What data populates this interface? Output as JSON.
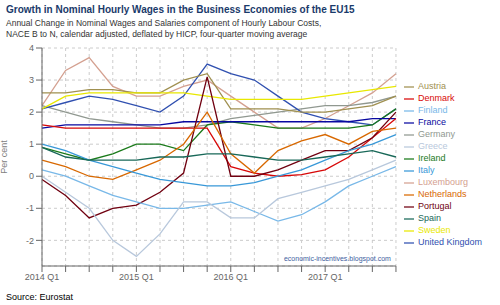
{
  "chart_data": {
    "type": "line",
    "title": "Growth in Nominal Hourly Wages in the Business Economies of the EU15",
    "subtitle": "Annual Change in Nominal Wages and Salaries component of Hourly Labour Costs,\nNACE B to N, calendar adjusted, deflated by HICP, four-quarter moving average",
    "ylabel": "Per cent",
    "annotations": [
      "economic-incentives.blogspot.com",
      "Source: Eurostat"
    ],
    "categories": [
      "2014 Q1",
      null,
      null,
      null,
      "2015 Q1",
      null,
      null,
      null,
      "2016 Q1",
      null,
      null,
      null,
      "2017 Q1",
      null,
      null,
      null
    ],
    "ylim": [
      -2.8,
      4.0
    ],
    "yticks": [
      -2,
      -1,
      0,
      1,
      2,
      3,
      4
    ],
    "grid": true,
    "legend": "right",
    "series": [
      {
        "name": "Luxembourg",
        "color": "#d4a090",
        "values": [
          2.2,
          3.3,
          3.7,
          2.8,
          2.5,
          2.5,
          2.8,
          3.0,
          2.5,
          2.0,
          1.5,
          1.5,
          1.8,
          2.2,
          2.6,
          3.2
        ]
      },
      {
        "name": "Germany",
        "color": "#909890",
        "values": [
          2.2,
          2.0,
          1.8,
          1.7,
          1.6,
          1.5,
          1.5,
          1.6,
          1.8,
          1.9,
          2.0,
          2.1,
          2.2,
          2.2,
          2.3,
          2.5
        ]
      },
      {
        "name": "United Kingdom",
        "color": "#3050b0",
        "values": [
          2.1,
          2.3,
          2.5,
          2.4,
          2.2,
          2.0,
          2.5,
          3.5,
          3.2,
          3.0,
          2.5,
          2.0,
          1.8,
          1.7,
          1.6,
          2.1
        ]
      },
      {
        "name": "Ireland",
        "color": "#1a7a1a",
        "values": [
          0.9,
          0.7,
          0.5,
          0.7,
          1.0,
          1.0,
          0.8,
          1.6,
          1.7,
          1.6,
          1.5,
          1.5,
          1.5,
          1.5,
          1.6,
          2.1
        ]
      },
      {
        "name": "Austria",
        "color": "#a09050",
        "values": [
          2.6,
          2.6,
          2.7,
          2.7,
          2.6,
          2.6,
          3.0,
          3.2,
          2.1,
          2.1,
          2.1,
          2.0,
          2.0,
          2.1,
          2.2,
          2.5
        ]
      },
      {
        "name": "Sweden",
        "color": "#e8e800",
        "values": [
          2.1,
          2.5,
          2.6,
          2.6,
          2.6,
          2.6,
          2.6,
          2.5,
          2.4,
          2.4,
          2.4,
          2.4,
          2.5,
          2.6,
          2.7,
          2.8
        ]
      },
      {
        "name": "France",
        "color": "#0808a0",
        "values": [
          1.5,
          1.6,
          1.6,
          1.6,
          1.6,
          1.6,
          1.7,
          1.7,
          1.7,
          1.7,
          1.7,
          1.7,
          1.7,
          1.7,
          1.8,
          1.8
        ]
      },
      {
        "name": "Denmark",
        "color": "#d80808",
        "values": [
          1.6,
          1.5,
          1.5,
          1.5,
          1.5,
          1.5,
          1.5,
          1.5,
          0.3,
          0.1,
          0.0,
          0.05,
          0.2,
          0.6,
          1.2,
          1.8
        ]
      },
      {
        "name": "Portugal",
        "color": "#700010",
        "values": [
          -0.1,
          -0.6,
          -1.3,
          -1.0,
          -0.9,
          -0.5,
          0.1,
          3.1,
          0.0,
          0.0,
          0.2,
          0.5,
          0.8,
          0.8,
          1.2,
          2.0
        ]
      },
      {
        "name": "Netherlands",
        "color": "#d86800",
        "values": [
          0.5,
          0.3,
          0.0,
          -0.1,
          0.2,
          0.5,
          1.0,
          2.0,
          0.7,
          0.1,
          0.8,
          1.1,
          1.3,
          1.0,
          1.4,
          1.5
        ]
      },
      {
        "name": "Italy",
        "color": "#3898d8",
        "values": [
          1.0,
          0.8,
          0.5,
          0.3,
          0.1,
          -0.1,
          -0.2,
          -0.3,
          -0.3,
          -0.2,
          0.0,
          0.2,
          0.5,
          0.8,
          1.0,
          1.3
        ]
      },
      {
        "name": "Spain",
        "color": "#186858",
        "values": [
          0.9,
          0.6,
          0.5,
          0.5,
          0.5,
          0.6,
          0.6,
          0.7,
          0.7,
          0.6,
          0.5,
          0.5,
          0.6,
          0.7,
          0.8,
          0.6
        ]
      },
      {
        "name": "Finland",
        "color": "#78b8e8",
        "values": [
          0.2,
          0.0,
          -0.3,
          -0.6,
          -0.8,
          -1.0,
          -1.0,
          -0.9,
          -0.8,
          -1.1,
          -1.4,
          -1.2,
          -0.8,
          -0.3,
          0.0,
          0.3
        ]
      },
      {
        "name": "Greece",
        "color": "#b8c8dc",
        "values": [
          0.0,
          -0.5,
          -1.0,
          -2.0,
          -2.5,
          -1.8,
          -0.8,
          -0.8,
          -1.3,
          -1.3,
          -0.7,
          -0.5,
          -0.3,
          -0.1,
          0.2,
          0.5
        ]
      }
    ]
  }
}
